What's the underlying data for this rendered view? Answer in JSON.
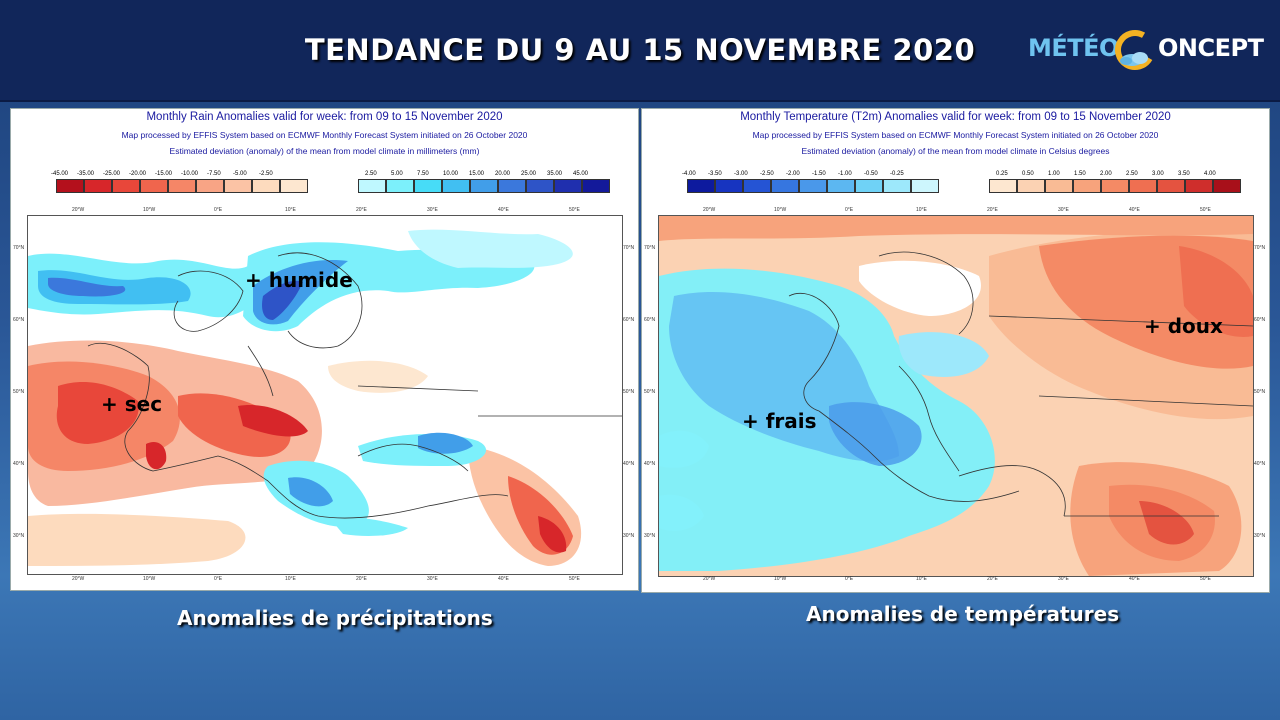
{
  "header": {
    "title": "TENDANCE DU 9 AU 15 NOVEMBRE 2020",
    "logo_left": "MÉTÉO",
    "logo_right": "ONCEPT",
    "logo_icon": "sun-cloud-c-icon"
  },
  "rain_panel": {
    "title": "Monthly Rain Anomalies valid for week: from 09 to 15 November 2020",
    "subtitle1": "Map processed by EFFIS System based on ECMWF Monthly Forecast System initiated on 26 October 2020",
    "subtitle2": "Estimated deviation (anomaly) of the mean from model climate in millimeters (mm)",
    "legend_neg": [
      "-45.00",
      "-35.00",
      "-25.00",
      "-20.00",
      "-15.00",
      "-10.00",
      "-7.50",
      "-5.00",
      "-2.50"
    ],
    "legend_neg_colors": [
      "#b4101c",
      "#d7262a",
      "#e8473a",
      "#f0654d",
      "#f58667",
      "#f8a485",
      "#fbc3a5",
      "#fddbbe",
      "#fde7d0"
    ],
    "legend_pos": [
      "2.50",
      "5.00",
      "7.50",
      "10.00",
      "15.00",
      "20.00",
      "25.00",
      "35.00",
      "45.00"
    ],
    "legend_pos_colors": [
      "#bff8ff",
      "#7cf0fb",
      "#47dcf7",
      "#41bff2",
      "#419ee9",
      "#3b78dc",
      "#2e54c7",
      "#1f2fae",
      "#13199a"
    ],
    "lon_labels": [
      "20°W",
      "10°W",
      "0°E",
      "10°E",
      "20°E",
      "30°E",
      "40°E",
      "50°E"
    ],
    "lat_labels": [
      "70°N",
      "60°N",
      "50°N",
      "40°N",
      "30°N"
    ],
    "label_wet": "+ humide",
    "label_dry": "+ sec",
    "caption": "Anomalies de précipitations"
  },
  "temp_panel": {
    "title": "Monthly Temperature (T2m) Anomalies valid for week: from 09 to 15 November 2020",
    "subtitle1": "Map processed by EFFIS System based on ECMWF Monthly Forecast System initiated on 26 October 2020",
    "subtitle2": "Estimated deviation (anomaly) of the mean from model climate in Celsius degrees",
    "legend_neg": [
      "-4.00",
      "-3.50",
      "-3.00",
      "-2.50",
      "-2.00",
      "-1.50",
      "-1.00",
      "-0.50",
      "-0.25"
    ],
    "legend_neg_colors": [
      "#0d1a9e",
      "#1734c0",
      "#2554d4",
      "#3676e0",
      "#4a98ea",
      "#5cb7f1",
      "#6fd2f6",
      "#9de8fb",
      "#cdf6fd"
    ],
    "legend_pos": [
      "0.25",
      "0.50",
      "1.00",
      "1.50",
      "2.00",
      "2.50",
      "3.00",
      "3.50",
      "4.00"
    ],
    "legend_pos_colors": [
      "#fde7d0",
      "#fbd2b3",
      "#f9bb95",
      "#f7a37c",
      "#f48a65",
      "#ef6f51",
      "#e45340",
      "#cf2e2c",
      "#a8101a"
    ],
    "lon_labels": [
      "20°W",
      "10°W",
      "0°E",
      "10°E",
      "20°E",
      "30°E",
      "40°E",
      "50°E"
    ],
    "lat_labels": [
      "70°N",
      "60°N",
      "50°N",
      "40°N",
      "30°N"
    ],
    "label_cool": "+ frais",
    "label_warm": "+ doux",
    "caption": "Anomalies de températures"
  }
}
